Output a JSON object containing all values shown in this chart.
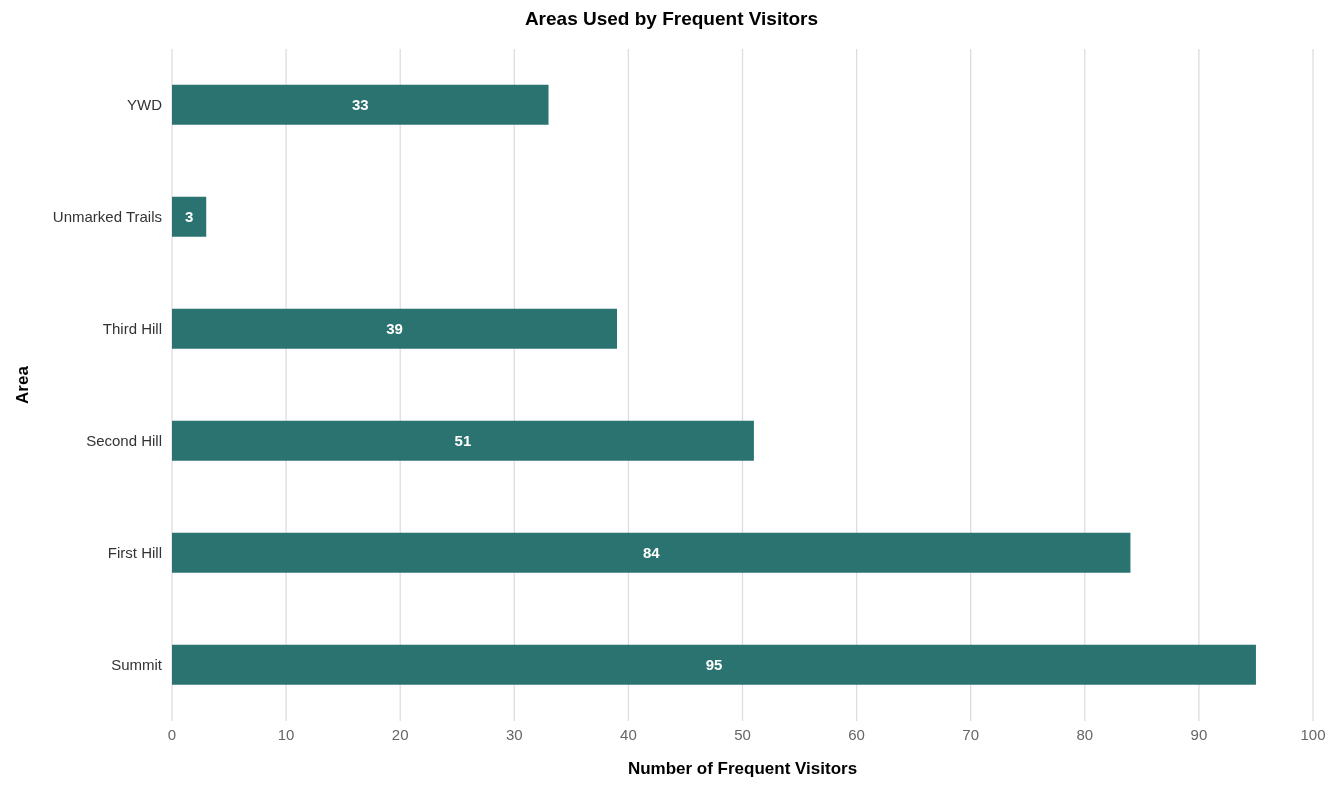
{
  "chart_data": {
    "type": "bar",
    "orientation": "horizontal",
    "title": "Areas Used by Frequent Visitors",
    "xlabel": "Number of Frequent Visitors",
    "ylabel": "Area",
    "categories": [
      "YWD",
      "Unmarked Trails",
      "Third Hill",
      "Second Hill",
      "First Hill",
      "Summit"
    ],
    "values": [
      33,
      3,
      39,
      51,
      84,
      95
    ],
    "color": "#2b7370",
    "xlim": [
      0,
      100
    ],
    "xticks": [
      0,
      10,
      20,
      30,
      40,
      50,
      60,
      70,
      80,
      90,
      100
    ],
    "grid": "x",
    "data_labels": true
  }
}
